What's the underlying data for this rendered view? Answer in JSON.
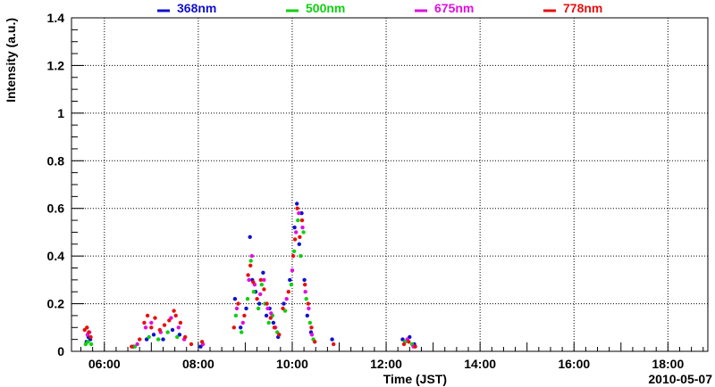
{
  "chart_data": {
    "type": "scatter",
    "xlabel": "Time (JST)",
    "ylabel": "Intensity (a.u.)",
    "date_label": "2010-05-07",
    "x_unit": "hours (JST)",
    "xlim": [
      5.3,
      18.85
    ],
    "ylim": [
      0,
      1.4
    ],
    "grid": true,
    "legend_position": "top",
    "x_ticks": [
      {
        "value": 6,
        "label": "06:00"
      },
      {
        "value": 8,
        "label": "08:00"
      },
      {
        "value": 10,
        "label": "10:00"
      },
      {
        "value": 12,
        "label": "12:00"
      },
      {
        "value": 14,
        "label": "14:00"
      },
      {
        "value": 16,
        "label": "16:00"
      },
      {
        "value": 18,
        "label": "18:00"
      }
    ],
    "y_ticks": [
      {
        "value": 0,
        "label": "0"
      },
      {
        "value": 0.2,
        "label": "0.2"
      },
      {
        "value": 0.4,
        "label": "0.4"
      },
      {
        "value": 0.6,
        "label": "0.6"
      },
      {
        "value": 0.8,
        "label": "0.8"
      },
      {
        "value": 1.0,
        "label": "1"
      },
      {
        "value": 1.2,
        "label": "1.2"
      },
      {
        "value": 1.4,
        "label": "1.4"
      }
    ],
    "series": [
      {
        "name": "368nm",
        "color": "#1010d0",
        "points": [
          [
            5.62,
            0.04
          ],
          [
            5.66,
            0.06
          ],
          [
            5.7,
            0.05
          ],
          [
            6.62,
            0.02
          ],
          [
            6.9,
            0.05
          ],
          [
            7.05,
            0.07
          ],
          [
            7.25,
            0.05
          ],
          [
            7.45,
            0.09
          ],
          [
            7.6,
            0.07
          ],
          [
            8.05,
            0.02
          ],
          [
            8.78,
            0.22
          ],
          [
            8.9,
            0.1
          ],
          [
            9.02,
            0.18
          ],
          [
            9.1,
            0.48
          ],
          [
            9.15,
            0.3
          ],
          [
            9.22,
            0.25
          ],
          [
            9.3,
            0.2
          ],
          [
            9.38,
            0.33
          ],
          [
            9.45,
            0.15
          ],
          [
            9.52,
            0.18
          ],
          [
            9.6,
            0.12
          ],
          [
            9.7,
            0.06
          ],
          [
            9.82,
            0.2
          ],
          [
            9.95,
            0.3
          ],
          [
            10.05,
            0.52
          ],
          [
            10.1,
            0.62
          ],
          [
            10.15,
            0.45
          ],
          [
            10.2,
            0.58
          ],
          [
            10.26,
            0.3
          ],
          [
            10.32,
            0.15
          ],
          [
            10.4,
            0.08
          ],
          [
            10.85,
            0.05
          ],
          [
            12.35,
            0.05
          ],
          [
            12.5,
            0.06
          ],
          [
            12.6,
            0.03
          ]
        ]
      },
      {
        "name": "500nm",
        "color": "#10d010",
        "points": [
          [
            5.6,
            0.03
          ],
          [
            5.65,
            0.04
          ],
          [
            5.72,
            0.03
          ],
          [
            6.65,
            0.02
          ],
          [
            6.95,
            0.06
          ],
          [
            7.15,
            0.05
          ],
          [
            7.35,
            0.08
          ],
          [
            7.55,
            0.06
          ],
          [
            8.8,
            0.15
          ],
          [
            8.92,
            0.08
          ],
          [
            9.05,
            0.22
          ],
          [
            9.12,
            0.38
          ],
          [
            9.18,
            0.25
          ],
          [
            9.28,
            0.18
          ],
          [
            9.35,
            0.28
          ],
          [
            9.42,
            0.2
          ],
          [
            9.5,
            0.12
          ],
          [
            9.58,
            0.15
          ],
          [
            9.68,
            0.08
          ],
          [
            9.85,
            0.17
          ],
          [
            9.98,
            0.28
          ],
          [
            10.04,
            0.42
          ],
          [
            10.12,
            0.55
          ],
          [
            10.18,
            0.4
          ],
          [
            10.24,
            0.5
          ],
          [
            10.3,
            0.22
          ],
          [
            10.38,
            0.12
          ],
          [
            10.45,
            0.05
          ],
          [
            12.4,
            0.04
          ],
          [
            12.55,
            0.03
          ]
        ]
      },
      {
        "name": "675nm",
        "color": "#e010e0",
        "points": [
          [
            5.64,
            0.07
          ],
          [
            5.68,
            0.08
          ],
          [
            6.7,
            0.03
          ],
          [
            6.88,
            0.1
          ],
          [
            7.0,
            0.12
          ],
          [
            7.2,
            0.08
          ],
          [
            7.42,
            0.14
          ],
          [
            7.58,
            0.1
          ],
          [
            7.7,
            0.05
          ],
          [
            8.1,
            0.03
          ],
          [
            8.82,
            0.18
          ],
          [
            8.95,
            0.12
          ],
          [
            9.08,
            0.3
          ],
          [
            9.14,
            0.4
          ],
          [
            9.2,
            0.28
          ],
          [
            9.32,
            0.24
          ],
          [
            9.4,
            0.3
          ],
          [
            9.48,
            0.18
          ],
          [
            9.55,
            0.16
          ],
          [
            9.64,
            0.1
          ],
          [
            9.88,
            0.22
          ],
          [
            10.0,
            0.34
          ],
          [
            10.08,
            0.5
          ],
          [
            10.14,
            0.58
          ],
          [
            10.22,
            0.52
          ],
          [
            10.28,
            0.25
          ],
          [
            10.35,
            0.18
          ],
          [
            10.42,
            0.07
          ],
          [
            12.45,
            0.05
          ],
          [
            12.58,
            0.02
          ]
        ]
      },
      {
        "name": "778nm",
        "color": "#e81010",
        "points": [
          [
            5.58,
            0.09
          ],
          [
            5.63,
            0.1
          ],
          [
            5.67,
            0.08
          ],
          [
            5.71,
            0.06
          ],
          [
            6.58,
            0.02
          ],
          [
            6.75,
            0.05
          ],
          [
            6.85,
            0.12
          ],
          [
            6.92,
            0.15
          ],
          [
            7.0,
            0.1
          ],
          [
            7.08,
            0.14
          ],
          [
            7.18,
            0.09
          ],
          [
            7.28,
            0.11
          ],
          [
            7.38,
            0.13
          ],
          [
            7.48,
            0.17
          ],
          [
            7.52,
            0.15
          ],
          [
            7.62,
            0.12
          ],
          [
            7.72,
            0.06
          ],
          [
            7.85,
            0.03
          ],
          [
            8.08,
            0.04
          ],
          [
            8.76,
            0.1
          ],
          [
            8.85,
            0.2
          ],
          [
            8.98,
            0.15
          ],
          [
            9.06,
            0.32
          ],
          [
            9.11,
            0.36
          ],
          [
            9.17,
            0.29
          ],
          [
            9.25,
            0.22
          ],
          [
            9.33,
            0.3
          ],
          [
            9.4,
            0.26
          ],
          [
            9.46,
            0.2
          ],
          [
            9.54,
            0.14
          ],
          [
            9.62,
            0.1
          ],
          [
            9.72,
            0.07
          ],
          [
            9.8,
            0.18
          ],
          [
            9.92,
            0.25
          ],
          [
            10.02,
            0.4
          ],
          [
            10.06,
            0.47
          ],
          [
            10.11,
            0.6
          ],
          [
            10.16,
            0.48
          ],
          [
            10.21,
            0.55
          ],
          [
            10.27,
            0.28
          ],
          [
            10.34,
            0.2
          ],
          [
            10.41,
            0.1
          ],
          [
            10.48,
            0.04
          ],
          [
            10.88,
            0.03
          ],
          [
            12.38,
            0.03
          ],
          [
            12.48,
            0.04
          ],
          [
            12.62,
            0.02
          ]
        ]
      }
    ]
  }
}
